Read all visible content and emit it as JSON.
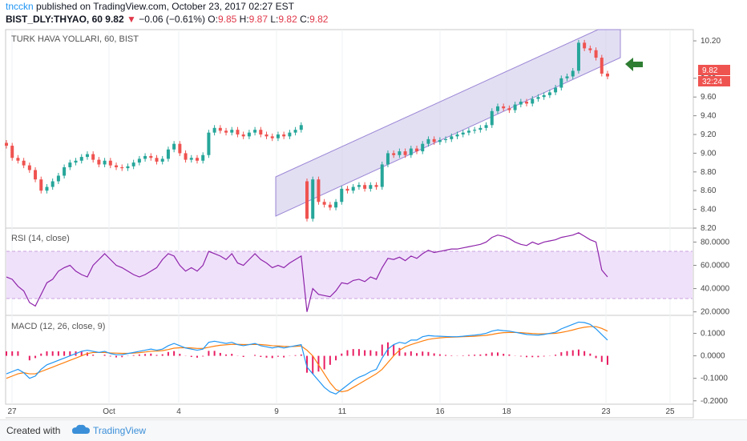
{
  "header": {
    "user": "tncckn",
    "published_text": "published on TradingView.com, October 23, 2017 02:27 EST",
    "symbol": "BIST_DLY:THYAO, 60",
    "last": "9.82",
    "change": "−0.06 (−0.61%)",
    "o_label": "O:",
    "o_value": "9.85",
    "h_label": "H:",
    "h_value": "9.87",
    "l_label": "L:",
    "l_value": "9.82",
    "c_label": "C:",
    "c_value": "9.82"
  },
  "colors": {
    "up": "#26a69a",
    "down": "#ef5350",
    "channel": "#ccc5ea",
    "rsi": "#8e24aa",
    "macd": "#2196f3",
    "signal": "#ff7f0e",
    "hist": "#e91e63",
    "arrow": "#2e7d32"
  },
  "price_badge": {
    "price": "9.82",
    "countdown": "32:24"
  },
  "icons": {
    "arrow": "left-arrow-icon",
    "logo": "tradingview-cloud-icon"
  },
  "footer": {
    "created_with": "Created with",
    "brand": "TradingView"
  },
  "chart_data": [
    {
      "type": "candlestick",
      "title": "TURK HAVA YOLLARI, 60, BIST",
      "ylim": [
        8.2,
        10.32
      ],
      "y_ticks": [
        "10.20",
        "9.80",
        "9.60",
        "9.40",
        "9.20",
        "9.00",
        "8.80",
        "8.60",
        "8.40",
        "8.20"
      ],
      "y_tick_values": [
        10.2,
        9.8,
        9.6,
        9.4,
        9.2,
        9.0,
        8.8,
        8.6,
        8.4,
        8.2
      ],
      "x_tick_labels": [
        "27",
        "Oct",
        "4",
        "9",
        "11",
        "16",
        "18",
        "23",
        "25"
      ],
      "close": [
        9.08,
        8.95,
        8.92,
        8.87,
        8.82,
        8.72,
        8.6,
        8.64,
        8.7,
        8.76,
        8.85,
        8.9,
        8.92,
        8.96,
        8.99,
        8.93,
        8.88,
        8.92,
        8.87,
        8.85,
        8.84,
        8.86,
        8.9,
        8.94,
        8.97,
        8.95,
        8.91,
        8.94,
        9.04,
        9.1,
        9.0,
        8.93,
        8.95,
        8.92,
        8.98,
        9.22,
        9.27,
        9.24,
        9.22,
        9.25,
        9.2,
        9.18,
        9.22,
        9.25,
        9.2,
        9.18,
        9.16,
        9.2,
        9.18,
        9.22,
        9.25,
        9.3,
        8.3,
        8.72,
        8.48,
        8.45,
        8.42,
        8.48,
        8.62,
        8.6,
        8.64,
        8.66,
        8.62,
        8.66,
        8.64,
        8.88,
        9.0,
        8.98,
        9.02,
        8.98,
        9.05,
        9.02,
        9.1,
        9.15,
        9.12,
        9.14,
        9.15,
        9.18,
        9.2,
        9.22,
        9.24,
        9.25,
        9.27,
        9.3,
        9.45,
        9.5,
        9.48,
        9.46,
        9.52,
        9.55,
        9.53,
        9.58,
        9.6,
        9.62,
        9.65,
        9.7,
        9.8,
        9.82,
        9.88,
        10.18,
        10.12,
        10.1,
        10.02,
        9.85,
        9.82
      ]
    },
    {
      "type": "line",
      "title": "RSI (14, close)",
      "ylim": [
        17,
        92
      ],
      "y_ticks": [
        "80.0000",
        "60.0000",
        "40.0000",
        "20.0000"
      ],
      "y_tick_values": [
        80,
        60,
        40,
        20
      ],
      "bands": [
        30,
        70
      ],
      "values": [
        50,
        48,
        42,
        38,
        28,
        25,
        35,
        45,
        48,
        55,
        58,
        60,
        55,
        52,
        50,
        60,
        65,
        70,
        65,
        60,
        58,
        55,
        52,
        50,
        52,
        55,
        58,
        65,
        70,
        68,
        60,
        55,
        58,
        55,
        60,
        72,
        70,
        68,
        65,
        70,
        62,
        60,
        65,
        70,
        65,
        62,
        58,
        60,
        58,
        62,
        65,
        68,
        20,
        40,
        35,
        34,
        33,
        38,
        45,
        44,
        47,
        48,
        46,
        50,
        48,
        58,
        66,
        65,
        67,
        64,
        68,
        66,
        70,
        73,
        71,
        72,
        73,
        74,
        74,
        75,
        76,
        77,
        78,
        80,
        84,
        86,
        85,
        83,
        80,
        78,
        77,
        80,
        78,
        80,
        81,
        82,
        84,
        85,
        86,
        88,
        85,
        82,
        80,
        56,
        50
      ]
    },
    {
      "type": "line",
      "title": "MACD (12, 26, close, 9)",
      "ylim": [
        -0.215,
        0.18
      ],
      "y_ticks": [
        "0.1000",
        "0.0000",
        "-0.1000",
        "-0.2000"
      ],
      "y_tick_values": [
        0.1,
        0,
        -0.1,
        -0.2
      ],
      "series": [
        {
          "name": "MACD",
          "values": [
            -0.08,
            -0.07,
            -0.06,
            -0.075,
            -0.1,
            -0.09,
            -0.06,
            -0.04,
            -0.03,
            -0.02,
            -0.01,
            0.0,
            0.01,
            0.02,
            0.025,
            0.02,
            0.015,
            0.02,
            0.01,
            0.005,
            0.005,
            0.01,
            0.015,
            0.02,
            0.025,
            0.03,
            0.025,
            0.03,
            0.045,
            0.055,
            0.045,
            0.035,
            0.03,
            0.025,
            0.03,
            0.06,
            0.065,
            0.06,
            0.055,
            0.06,
            0.05,
            0.045,
            0.05,
            0.055,
            0.045,
            0.04,
            0.035,
            0.04,
            0.035,
            0.04,
            0.045,
            0.05,
            -0.05,
            -0.08,
            -0.11,
            -0.14,
            -0.16,
            -0.17,
            -0.15,
            -0.13,
            -0.11,
            -0.095,
            -0.085,
            -0.07,
            -0.06,
            -0.01,
            0.03,
            0.05,
            0.06,
            0.055,
            0.07,
            0.07,
            0.085,
            0.09,
            0.088,
            0.087,
            0.086,
            0.085,
            0.085,
            0.087,
            0.09,
            0.092,
            0.095,
            0.1,
            0.11,
            0.115,
            0.112,
            0.11,
            0.105,
            0.1,
            0.095,
            0.093,
            0.092,
            0.095,
            0.1,
            0.105,
            0.12,
            0.13,
            0.14,
            0.15,
            0.148,
            0.14,
            0.12,
            0.095,
            0.07
          ]
        },
        {
          "name": "Signal",
          "values": [
            -0.1,
            -0.09,
            -0.08,
            -0.075,
            -0.08,
            -0.08,
            -0.07,
            -0.06,
            -0.05,
            -0.04,
            -0.03,
            -0.02,
            -0.01,
            0.0,
            0.01,
            0.015,
            0.015,
            0.015,
            0.013,
            0.012,
            0.011,
            0.011,
            0.012,
            0.014,
            0.017,
            0.02,
            0.021,
            0.023,
            0.028,
            0.034,
            0.036,
            0.036,
            0.035,
            0.033,
            0.033,
            0.038,
            0.043,
            0.047,
            0.049,
            0.051,
            0.051,
            0.05,
            0.05,
            0.051,
            0.05,
            0.048,
            0.045,
            0.044,
            0.042,
            0.041,
            0.042,
            0.044,
            0.025,
            0.0,
            -0.04,
            -0.08,
            -0.12,
            -0.15,
            -0.16,
            -0.155,
            -0.14,
            -0.125,
            -0.11,
            -0.095,
            -0.08,
            -0.06,
            -0.03,
            0.0,
            0.025,
            0.04,
            0.05,
            0.058,
            0.066,
            0.073,
            0.077,
            0.08,
            0.082,
            0.083,
            0.084,
            0.085,
            0.086,
            0.087,
            0.089,
            0.091,
            0.095,
            0.1,
            0.103,
            0.104,
            0.104,
            0.103,
            0.101,
            0.099,
            0.098,
            0.098,
            0.099,
            0.1,
            0.104,
            0.109,
            0.115,
            0.122,
            0.127,
            0.13,
            0.13,
            0.122,
            0.11
          ]
        }
      ]
    }
  ]
}
